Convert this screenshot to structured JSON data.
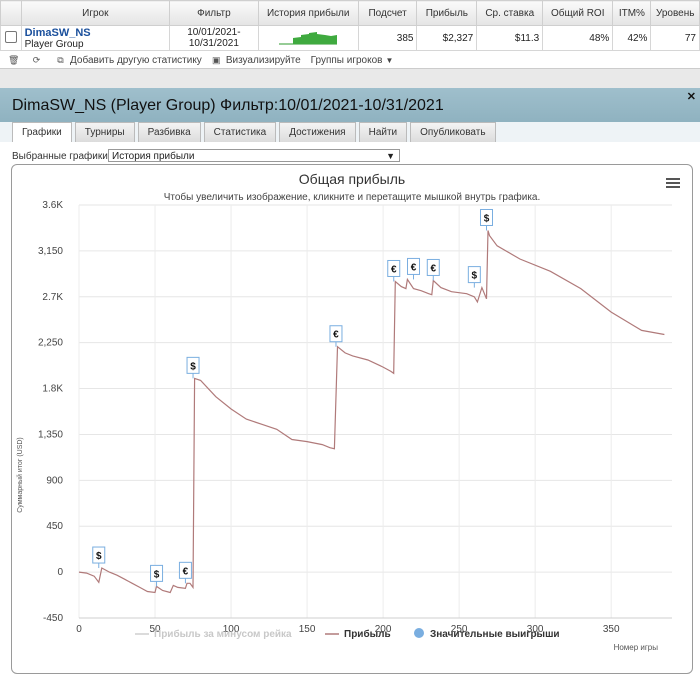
{
  "table": {
    "headers": [
      "Игрок",
      "Фильтр",
      "История прибыли",
      "Подсчет",
      "Прибыль",
      "Ср. ставка",
      "Общий ROI",
      "ITM%",
      "Уровень"
    ],
    "row": {
      "player": "DimaSW_NS",
      "group": "Player Group",
      "filter_line1": "10/01/2021-",
      "filter_line2": "10/31/2021",
      "count": "385",
      "profit": "$2,327",
      "avg_stake": "$11.3",
      "roi": "48%",
      "itm": "42%",
      "level": "77"
    }
  },
  "toolbar": {
    "add_stats": "Добавить другую статистику",
    "visualize": "Визуализируйте",
    "groups": "Группы игроков"
  },
  "panel": {
    "title": "DimaSW_NS (Player Group) Фильтр:10/01/2021-10/31/2021",
    "tabs": [
      "Графики",
      "Турниры",
      "Разбивка",
      "Статистика",
      "Достижения",
      "Найти",
      "Опубликовать"
    ],
    "active_tab": "Графики",
    "selected_label": "Выбранные графики:",
    "selected_value": "История прибыли"
  },
  "chart_data": {
    "type": "line",
    "title": "Общая прибыль",
    "subtitle": "Чтобы увеличить изображение, кликните и перетащите мышкой внутрь графика.",
    "xlabel": "Номер игры",
    "ylabel": "Суммарный итог (USD)",
    "xlim": [
      0,
      390
    ],
    "ylim": [
      -450,
      3600
    ],
    "xticks": [
      "0",
      "50",
      "100",
      "150",
      "200",
      "250",
      "300",
      "350"
    ],
    "yticks": [
      "-450",
      "0",
      "450",
      "900",
      "1,350",
      "1.8K",
      "2,250",
      "2.7K",
      "3,150",
      "3.6K"
    ],
    "xtick_values": [
      0,
      50,
      100,
      150,
      200,
      250,
      300,
      350
    ],
    "ytick_values": [
      -450,
      0,
      450,
      900,
      1350,
      1800,
      2250,
      2700,
      3150,
      3600
    ],
    "grid": true,
    "legend_position": "bottom",
    "series": [
      {
        "name": "Прибыль",
        "color": "#b07a7a",
        "x": [
          0,
          5,
          10,
          13,
          15,
          20,
          25,
          30,
          35,
          40,
          45,
          50,
          51,
          55,
          60,
          62,
          65,
          70,
          71,
          73,
          75,
          76,
          80,
          90,
          100,
          110,
          120,
          130,
          140,
          150,
          160,
          165,
          168,
          170,
          175,
          180,
          190,
          200,
          205,
          207,
          208,
          212,
          215,
          216,
          220,
          225,
          230,
          232,
          233,
          238,
          245,
          255,
          260,
          262,
          265,
          268,
          269,
          270,
          275,
          290,
          310,
          330,
          350,
          370,
          385
        ],
        "y": [
          0,
          -10,
          -40,
          -100,
          40,
          0,
          -30,
          -70,
          -110,
          -150,
          -190,
          -200,
          -140,
          -180,
          -200,
          -130,
          -150,
          -160,
          -110,
          -110,
          -150,
          1900,
          1880,
          1720,
          1600,
          1500,
          1450,
          1400,
          1300,
          1280,
          1250,
          1220,
          1210,
          2210,
          2150,
          2120,
          2080,
          2010,
          1970,
          1950,
          2850,
          2800,
          2780,
          2870,
          2780,
          2760,
          2730,
          2720,
          2860,
          2790,
          2750,
          2730,
          2700,
          2650,
          2790,
          2680,
          3350,
          3300,
          3200,
          3070,
          2950,
          2780,
          2550,
          2370,
          2330
        ]
      },
      {
        "name": "Прибыль за минусом рейка",
        "color": "#cfcfcf"
      },
      {
        "name": "Значительные выигрыши",
        "color": "#7aaee0"
      }
    ],
    "markers": [
      {
        "x": 13,
        "y": 40,
        "symbol": "$"
      },
      {
        "x": 51,
        "y": -140,
        "symbol": "$"
      },
      {
        "x": 70,
        "y": -110,
        "symbol": "€"
      },
      {
        "x": 75,
        "y": 1900,
        "symbol": "$"
      },
      {
        "x": 169,
        "y": 2210,
        "symbol": "€"
      },
      {
        "x": 207,
        "y": 2850,
        "symbol": "€"
      },
      {
        "x": 220,
        "y": 2870,
        "symbol": "€"
      },
      {
        "x": 233,
        "y": 2860,
        "symbol": "€"
      },
      {
        "x": 260,
        "y": 2790,
        "symbol": "$"
      },
      {
        "x": 268,
        "y": 3350,
        "symbol": "$"
      }
    ]
  }
}
